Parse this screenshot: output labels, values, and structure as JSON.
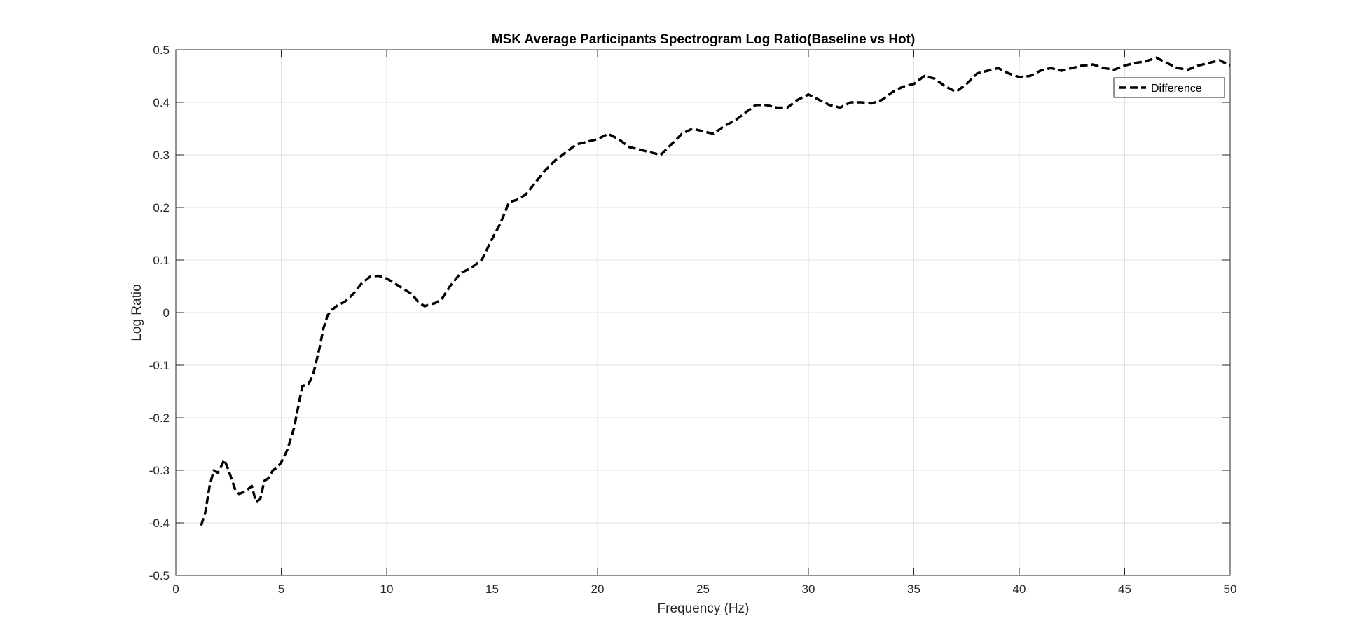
{
  "chart_data": {
    "type": "line",
    "title": "MSK Average Participants Spectrogram Log Ratio(Baseline vs Hot)",
    "xlabel": "Frequency (Hz)",
    "ylabel": "Log Ratio",
    "xlim": [
      0,
      50
    ],
    "ylim": [
      -0.5,
      0.5
    ],
    "xticks": [
      0,
      5,
      10,
      15,
      20,
      25,
      30,
      35,
      40,
      45,
      50
    ],
    "yticks": [
      -0.5,
      -0.4,
      -0.3,
      -0.2,
      -0.1,
      0,
      0.1,
      0.2,
      0.3,
      0.4,
      0.5
    ],
    "grid": true,
    "legend_position": "top-right",
    "series": [
      {
        "name": "Difference",
        "style": "dashed",
        "color": "#000000",
        "x": [
          1.2,
          1.4,
          1.6,
          1.8,
          2.0,
          2.3,
          2.5,
          2.8,
          3.0,
          3.3,
          3.6,
          3.8,
          4.0,
          4.2,
          4.4,
          4.6,
          4.8,
          5.0,
          5.3,
          5.6,
          5.8,
          6.0,
          6.3,
          6.5,
          6.8,
          7.0,
          7.2,
          7.4,
          7.7,
          8.0,
          8.4,
          8.8,
          9.2,
          9.6,
          10.0,
          10.4,
          10.8,
          11.2,
          11.5,
          11.8,
          12.0,
          12.3,
          12.6,
          13.0,
          13.5,
          14.0,
          14.5,
          15.0,
          15.4,
          15.8,
          16.2,
          16.6,
          17.0,
          17.5,
          18.0,
          18.5,
          19.0,
          19.5,
          20.0,
          20.5,
          21.0,
          21.5,
          22.0,
          22.5,
          23.0,
          23.5,
          24.0,
          24.5,
          25.0,
          25.5,
          26.0,
          26.5,
          27.0,
          27.5,
          28.0,
          28.5,
          29.0,
          29.5,
          30.0,
          30.5,
          31.0,
          31.5,
          32.0,
          32.5,
          33.0,
          33.5,
          34.0,
          34.5,
          35.0,
          35.5,
          36.0,
          36.5,
          37.0,
          37.5,
          38.0,
          38.5,
          39.0,
          39.5,
          40.0,
          40.5,
          41.0,
          41.5,
          42.0,
          42.5,
          43.0,
          43.5,
          44.0,
          44.5,
          45.0,
          45.5,
          46.0,
          46.5,
          47.0,
          47.5,
          48.0,
          48.5,
          49.0,
          49.5,
          50.0
        ],
        "y": [
          -0.405,
          -0.38,
          -0.33,
          -0.3,
          -0.305,
          -0.28,
          -0.3,
          -0.335,
          -0.345,
          -0.34,
          -0.33,
          -0.36,
          -0.355,
          -0.32,
          -0.315,
          -0.3,
          -0.295,
          -0.285,
          -0.26,
          -0.22,
          -0.18,
          -0.14,
          -0.135,
          -0.12,
          -0.07,
          -0.03,
          -0.005,
          0.005,
          0.015,
          0.02,
          0.035,
          0.055,
          0.068,
          0.07,
          0.065,
          0.055,
          0.045,
          0.035,
          0.02,
          0.012,
          0.015,
          0.018,
          0.025,
          0.05,
          0.075,
          0.085,
          0.1,
          0.14,
          0.17,
          0.21,
          0.215,
          0.225,
          0.245,
          0.27,
          0.29,
          0.305,
          0.32,
          0.325,
          0.33,
          0.34,
          0.33,
          0.315,
          0.31,
          0.305,
          0.3,
          0.32,
          0.34,
          0.35,
          0.345,
          0.34,
          0.355,
          0.365,
          0.38,
          0.395,
          0.395,
          0.39,
          0.39,
          0.405,
          0.415,
          0.405,
          0.395,
          0.39,
          0.4,
          0.4,
          0.398,
          0.405,
          0.42,
          0.43,
          0.435,
          0.45,
          0.445,
          0.43,
          0.42,
          0.435,
          0.455,
          0.46,
          0.465,
          0.455,
          0.448,
          0.45,
          0.46,
          0.465,
          0.46,
          0.465,
          0.47,
          0.472,
          0.465,
          0.462,
          0.47,
          0.475,
          0.478,
          0.485,
          0.475,
          0.465,
          0.462,
          0.47,
          0.475,
          0.48,
          0.47
        ]
      }
    ]
  }
}
